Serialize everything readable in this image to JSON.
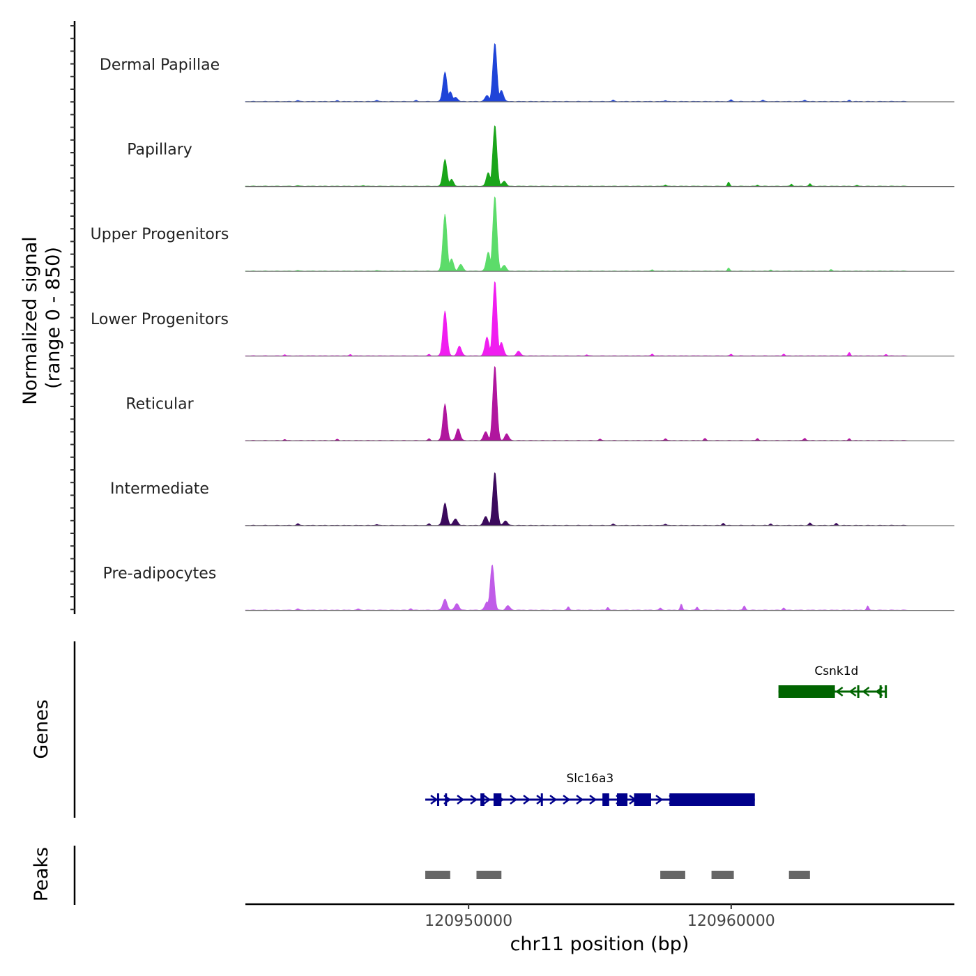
{
  "chart_data": {
    "type": "area",
    "title": "",
    "chromosome": "chr11",
    "xlabel": "chr11 position (bp)",
    "ylabel_line1": "Normalized signal",
    "ylabel_line2": "(range 0 - 850)",
    "xlim": [
      120941500,
      120968500
    ],
    "ylim": [
      0,
      850
    ],
    "x_ticks": [
      120950000,
      120960000
    ],
    "x_tick_labels": [
      "120950000",
      "120960000"
    ],
    "coverage_tracks": [
      {
        "name": "Dermal Papillae",
        "color": "#1f44d8",
        "peaks": [
          [
            120949100,
            395
          ],
          [
            120949300,
            130
          ],
          [
            120951000,
            780
          ],
          [
            120951250,
            150
          ],
          [
            120950700,
            80
          ],
          [
            120949500,
            60
          ]
        ],
        "noise": [
          [
            120943500,
            15
          ],
          [
            120945000,
            12
          ],
          [
            120946500,
            20
          ],
          [
            120948000,
            14
          ],
          [
            120955500,
            18
          ],
          [
            120957500,
            16
          ],
          [
            120960000,
            25
          ],
          [
            120961200,
            20
          ],
          [
            120962800,
            22
          ],
          [
            120964500,
            18
          ]
        ],
        "domain": [
          120941500,
          120966700
        ]
      },
      {
        "name": "Papillary",
        "color": "#1aa51a",
        "peaks": [
          [
            120949100,
            360
          ],
          [
            120949350,
            90
          ],
          [
            120951000,
            815
          ],
          [
            120950750,
            180
          ],
          [
            120951350,
            70
          ]
        ],
        "noise": [
          [
            120943500,
            10
          ],
          [
            120946000,
            12
          ],
          [
            120957500,
            22
          ],
          [
            120959900,
            55
          ],
          [
            120961000,
            18
          ],
          [
            120962300,
            30
          ],
          [
            120963000,
            35
          ],
          [
            120964800,
            14
          ]
        ],
        "domain": [
          120941500,
          120966700
        ]
      },
      {
        "name": "Upper Progenitors",
        "color": "#5cdc6a",
        "peaks": [
          [
            120949100,
            760
          ],
          [
            120949350,
            160
          ],
          [
            120949700,
            90
          ],
          [
            120951000,
            1000
          ],
          [
            120950750,
            250
          ],
          [
            120951350,
            80
          ]
        ],
        "noise": [
          [
            120943500,
            10
          ],
          [
            120946500,
            12
          ],
          [
            120957000,
            18
          ],
          [
            120959900,
            40
          ],
          [
            120961500,
            16
          ],
          [
            120963800,
            20
          ]
        ],
        "domain": [
          120941500,
          120966700
        ]
      },
      {
        "name": "Lower Progenitors",
        "color": "#f01ef0",
        "peaks": [
          [
            120949100,
            600
          ],
          [
            120949650,
            130
          ],
          [
            120951000,
            1000
          ],
          [
            120950700,
            250
          ],
          [
            120951250,
            180
          ],
          [
            120951900,
            60
          ]
        ],
        "noise": [
          [
            120943000,
            15
          ],
          [
            120945500,
            18
          ],
          [
            120948500,
            20
          ],
          [
            120954500,
            16
          ],
          [
            120957000,
            25
          ],
          [
            120960000,
            22
          ],
          [
            120962000,
            24
          ],
          [
            120964500,
            45
          ],
          [
            120965900,
            20
          ]
        ],
        "domain": [
          120941500,
          120966700
        ]
      },
      {
        "name": "Reticular",
        "color": "#b0169e",
        "peaks": [
          [
            120949100,
            490
          ],
          [
            120949600,
            160
          ],
          [
            120951000,
            1000
          ],
          [
            120950650,
            120
          ],
          [
            120951450,
            90
          ]
        ],
        "noise": [
          [
            120943000,
            15
          ],
          [
            120945000,
            18
          ],
          [
            120948500,
            25
          ],
          [
            120955000,
            22
          ],
          [
            120957500,
            30
          ],
          [
            120959000,
            28
          ],
          [
            120961000,
            30
          ],
          [
            120962800,
            35
          ],
          [
            120964500,
            25
          ]
        ],
        "domain": [
          120941500,
          120966700
        ]
      },
      {
        "name": "Intermediate",
        "color": "#3b0a5c",
        "peaks": [
          [
            120949100,
            300
          ],
          [
            120949500,
            90
          ],
          [
            120951000,
            710
          ],
          [
            120950650,
            120
          ],
          [
            120951400,
            60
          ]
        ],
        "noise": [
          [
            120943500,
            25
          ],
          [
            120946500,
            15
          ],
          [
            120948500,
            22
          ],
          [
            120955500,
            18
          ],
          [
            120957500,
            20
          ],
          [
            120959700,
            30
          ],
          [
            120961500,
            22
          ],
          [
            120963000,
            35
          ],
          [
            120964000,
            28
          ]
        ],
        "domain": [
          120941500,
          120966700
        ]
      },
      {
        "name": "Pre-adipocytes",
        "color": "#c05ce8",
        "peaks": [
          [
            120949100,
            150
          ],
          [
            120949550,
            90
          ],
          [
            120950900,
            610
          ],
          [
            120950700,
            110
          ],
          [
            120951500,
            60
          ]
        ],
        "noise": [
          [
            120943500,
            20
          ],
          [
            120945800,
            18
          ],
          [
            120947800,
            22
          ],
          [
            120953800,
            45
          ],
          [
            120955300,
            38
          ],
          [
            120957300,
            30
          ],
          [
            120958100,
            80
          ],
          [
            120958700,
            40
          ],
          [
            120960500,
            60
          ],
          [
            120962000,
            30
          ],
          [
            120965200,
            55
          ]
        ],
        "domain": [
          120941500,
          120966700
        ]
      }
    ],
    "genes_track_label": "Genes",
    "genes": [
      {
        "name": "Csnk1d",
        "strand": "-",
        "color": "#006400",
        "start": 120961800,
        "end": 120965900,
        "thick": [
          [
            120961800,
            120963950
          ]
        ],
        "exons": [
          [
            120964800,
            120964850
          ],
          [
            120965650,
            120965700
          ],
          [
            120965850,
            120965900
          ]
        ]
      },
      {
        "name": "Slc16a3",
        "strand": "+",
        "color": "#00008b",
        "start": 120948350,
        "end": 120960900,
        "thick": [
          [
            120950450,
            120950600
          ],
          [
            120950950,
            120951250
          ],
          [
            120955100,
            120955350
          ],
          [
            120955650,
            120956050
          ],
          [
            120956300,
            120956950
          ],
          [
            120957650,
            120960900
          ]
        ],
        "exons": [
          [
            120948800,
            120948850
          ],
          [
            120949100,
            120949150
          ],
          [
            120952750,
            120952800
          ],
          [
            120955100,
            120955350
          ]
        ]
      }
    ],
    "peaks_track_label": "Peaks",
    "peaks": [
      [
        120948350,
        120949300
      ],
      [
        120950300,
        120951250
      ],
      [
        120957300,
        120958250
      ],
      [
        120959250,
        120960100
      ],
      [
        120962200,
        120963000
      ]
    ]
  }
}
